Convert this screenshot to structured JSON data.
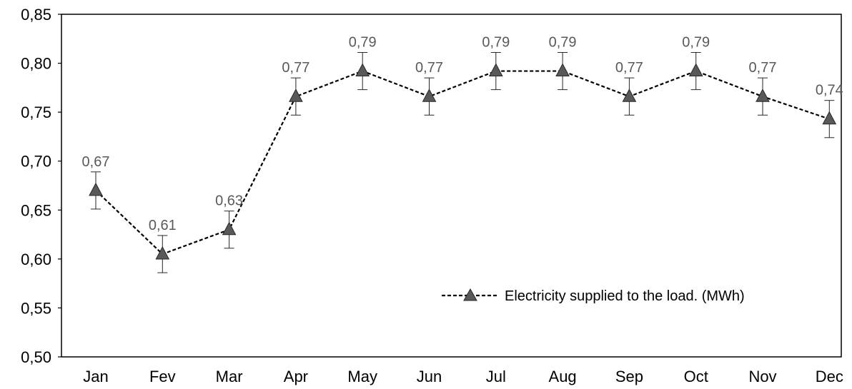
{
  "chart_data": {
    "type": "line",
    "title": "",
    "xlabel": "",
    "ylabel": "",
    "categories": [
      "Jan",
      "Fev",
      "Mar",
      "Apr",
      "May",
      "Jun",
      "Jul",
      "Aug",
      "Sep",
      "Oct",
      "Nov",
      "Dec"
    ],
    "series": [
      {
        "name": "Electricity supplied to the load. (MWh)",
        "values": [
          0.67,
          0.605,
          0.63,
          0.766,
          0.792,
          0.766,
          0.792,
          0.792,
          0.766,
          0.792,
          0.766,
          0.743
        ],
        "data_labels": [
          "0,67",
          "0,61",
          "0,63",
          "0,77",
          "0,79",
          "0,77",
          "0,79",
          "0,79",
          "0,77",
          "0,79",
          "0,77",
          "0,74"
        ],
        "error": 0.019,
        "marker": "triangle",
        "line_style": "dashed",
        "color": "#000000",
        "marker_color": "#595959"
      }
    ],
    "ylim": [
      0.5,
      0.85
    ],
    "yticks": [
      0.5,
      0.55,
      0.6,
      0.65,
      0.7,
      0.75,
      0.8,
      0.85
    ],
    "ytick_labels": [
      "0,50",
      "0,55",
      "0,60",
      "0,65",
      "0,70",
      "0,75",
      "0,80",
      "0,85"
    ],
    "grid": false,
    "legend_position": "lower-right",
    "colors": {
      "axis": "#000000",
      "marker_fill": "#595959",
      "label_text": "#595959"
    }
  }
}
